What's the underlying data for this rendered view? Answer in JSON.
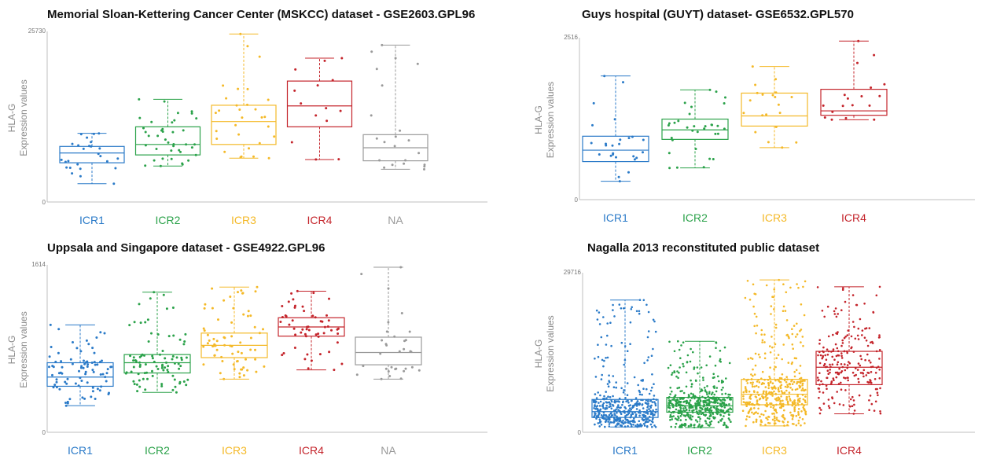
{
  "colors": {
    "ICR1": "#2a7ac8",
    "ICR2": "#2ba24a",
    "ICR3": "#f4b928",
    "ICR4": "#c4242b",
    "NA": "#9a9a9a",
    "axis": "#bfbfbf"
  },
  "chart_data": [
    {
      "type": "box",
      "title": "Memorial Sloan-Kettering Cancer Center (MSKCC) dataset - GSE2603.GPL96",
      "ylabel_line1": "HLA-G",
      "ylabel_line2": "Expression values",
      "ylim": [
        0,
        25730
      ],
      "ytick_top": "25730",
      "ytick_bottom": "0",
      "categories": [
        "ICR1",
        "ICR2",
        "ICR3",
        "ICR4",
        "NA"
      ],
      "boxes": [
        {
          "q1": 6000,
          "median": 7500,
          "q3": 8500,
          "whisker_low": 2800,
          "whisker_high": 10500,
          "n": 26
        },
        {
          "q1": 7200,
          "median": 8800,
          "q3": 11500,
          "whisker_low": 5500,
          "whisker_high": 15700,
          "n": 40
        },
        {
          "q1": 8800,
          "median": 12300,
          "q3": 14800,
          "whisker_low": 6700,
          "whisker_high": 25700,
          "n": 30
        },
        {
          "q1": 11500,
          "median": 14700,
          "q3": 18500,
          "whisker_low": 6500,
          "whisker_high": 22000,
          "n": 14
        },
        {
          "q1": 6300,
          "median": 8300,
          "q3": 10300,
          "whisker_low": 5000,
          "whisker_high": 24000,
          "n": 22
        }
      ]
    },
    {
      "type": "box",
      "title": "Guys hospital (GUYT) dataset- GSE6532.GPL570",
      "ylabel_line1": "HLA-G",
      "ylabel_line2": "Expression values",
      "ylim": [
        0,
        2516
      ],
      "ytick_top": "2516",
      "ytick_bottom": "0",
      "categories": [
        "ICR1",
        "ICR2",
        "ICR3",
        "ICR4"
      ],
      "boxes": [
        {
          "q1": 600,
          "median": 780,
          "q3": 1000,
          "whisker_low": 290,
          "whisker_high": 1950,
          "n": 26
        },
        {
          "q1": 950,
          "median": 1100,
          "q3": 1270,
          "whisker_low": 500,
          "whisker_high": 1730,
          "n": 32
        },
        {
          "q1": 1160,
          "median": 1320,
          "q3": 1680,
          "whisker_low": 820,
          "whisker_high": 2100,
          "n": 20
        },
        {
          "q1": 1330,
          "median": 1400,
          "q3": 1740,
          "whisker_low": 1260,
          "whisker_high": 2500,
          "n": 18
        }
      ]
    },
    {
      "type": "box",
      "title": "Uppsala and Singapore dataset - GSE4922.GPL96",
      "ylabel_line1": "HLA-G",
      "ylabel_line2": "Expression values",
      "ylim": [
        0,
        1614
      ],
      "ytick_top": "1614",
      "ytick_bottom": "0",
      "categories": [
        "ICR1",
        "ICR2",
        "ICR3",
        "ICR4",
        "NA"
      ],
      "boxes": [
        {
          "q1": 450,
          "median": 540,
          "q3": 680,
          "whisker_low": 260,
          "whisker_high": 1050,
          "n": 85
        },
        {
          "q1": 580,
          "median": 680,
          "q3": 760,
          "whisker_low": 390,
          "whisker_high": 1370,
          "n": 90
        },
        {
          "q1": 730,
          "median": 850,
          "q3": 970,
          "whisker_low": 520,
          "whisker_high": 1420,
          "n": 70
        },
        {
          "q1": 940,
          "median": 1030,
          "q3": 1120,
          "whisker_low": 610,
          "whisker_high": 1380,
          "n": 55
        },
        {
          "q1": 660,
          "median": 780,
          "q3": 930,
          "whisker_low": 520,
          "whisker_high": 1614,
          "n": 32
        }
      ]
    },
    {
      "type": "box",
      "title": "Nagalla 2013 reconstituted public dataset",
      "ylabel_line1": "HLA-G",
      "ylabel_line2": "Expression values",
      "ylim": [
        0,
        29716
      ],
      "ytick_top": "29716",
      "ytick_bottom": "0",
      "categories": [
        "ICR1",
        "ICR2",
        "ICR3",
        "ICR4"
      ],
      "boxes": [
        {
          "q1": 2800,
          "median": 3900,
          "q3": 6200,
          "whisker_low": 1000,
          "whisker_high": 25000,
          "n": 420
        },
        {
          "q1": 3800,
          "median": 5000,
          "q3": 6600,
          "whisker_low": 900,
          "whisker_high": 17200,
          "n": 480
        },
        {
          "q1": 5200,
          "median": 7200,
          "q3": 10000,
          "whisker_low": 1200,
          "whisker_high": 28800,
          "n": 430
        },
        {
          "q1": 9000,
          "median": 12300,
          "q3": 15300,
          "whisker_low": 3500,
          "whisker_high": 27500,
          "n": 230
        }
      ]
    }
  ]
}
